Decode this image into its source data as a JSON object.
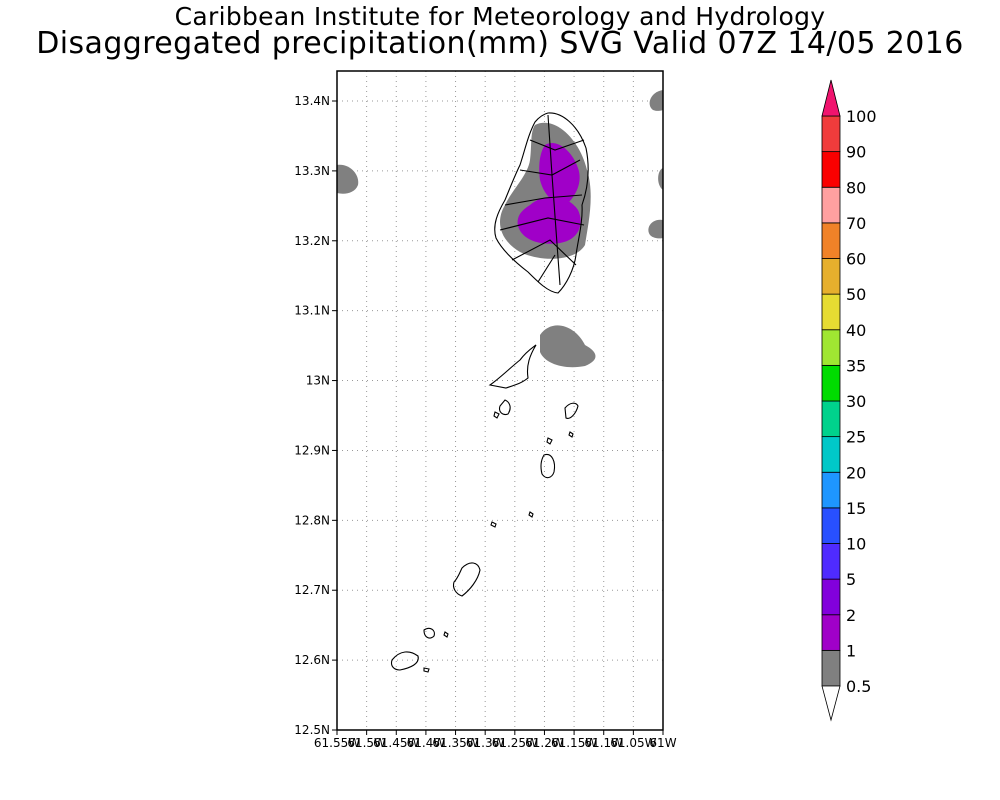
{
  "title": {
    "line1": "Caribbean Institute for Meteorology and Hydrology",
    "line2": "Disaggregated precipitation(mm) SVG Valid 07Z 14/05 2016"
  },
  "map": {
    "lat_range": [
      12.5,
      13.44
    ],
    "lon_range": [
      -61.55,
      -61.0
    ],
    "lat_ticks": [
      "13.4N",
      "13.3N",
      "13.2N",
      "13.1N",
      "13N",
      "12.9N",
      "12.8N",
      "12.7N",
      "12.6N",
      "12.5N"
    ],
    "lon_ticks": [
      "61.55W",
      "61.5W",
      "61.45W",
      "61.4W",
      "61.35W",
      "61.3W",
      "61.25W",
      "61.2W",
      "61.15W",
      "61.1W",
      "61.05W",
      "61W"
    ],
    "grid": "dotted",
    "precip_colors": {
      "light": "#808080",
      "moderate": "#a000c8"
    }
  },
  "colorbar": {
    "labels": [
      "0.5",
      "1",
      "2",
      "5",
      "10",
      "15",
      "20",
      "25",
      "30",
      "35",
      "40",
      "50",
      "60",
      "70",
      "80",
      "90",
      "100"
    ],
    "colors": [
      "#808080",
      "#a000c8",
      "#8200dc",
      "#4f2bff",
      "#2850ff",
      "#1e96ff",
      "#00c8c8",
      "#00d28c",
      "#00dc00",
      "#a0e632",
      "#e6dc32",
      "#e6af2d",
      "#f08228",
      "#ffa0a0",
      "#fa0000",
      "#f03c3c"
    ],
    "top_arrow_color": "#f0146e",
    "bottom_arrow_color": "#ffffff"
  }
}
